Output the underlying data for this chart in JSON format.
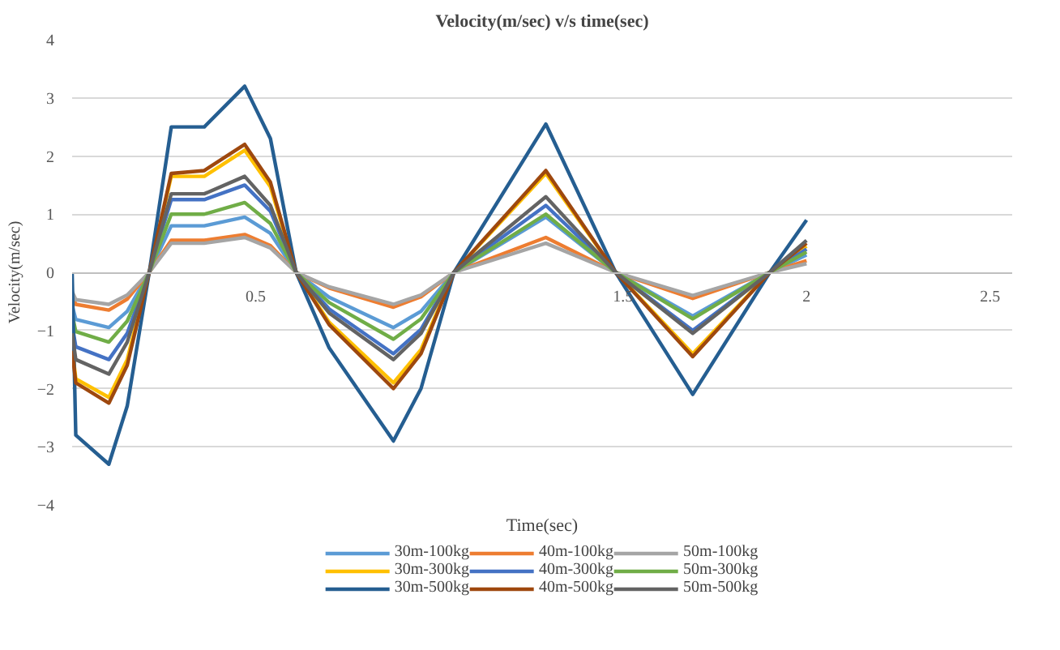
{
  "chart_data": {
    "type": "line",
    "title": "Velocity(m/sec) v/s time(sec)",
    "xlabel": "Time(sec)",
    "ylabel": "Velocity(m/sec)",
    "x": [
      0,
      0.01,
      0.1,
      0.15,
      0.21,
      0.27,
      0.36,
      0.47,
      0.54,
      0.61,
      0.7,
      0.875,
      0.95,
      1.04,
      1.29,
      1.48,
      1.69,
      1.9,
      2.0
    ],
    "xlim": [
      0,
      2.56
    ],
    "xticks": [
      0.5,
      1.5,
      2,
      2.5
    ],
    "ylim": [
      -4,
      4
    ],
    "yticks": [
      -4,
      -3,
      -2,
      -1,
      0,
      1,
      2,
      3,
      4
    ],
    "grid": "y",
    "legend": "bottom",
    "series": [
      {
        "name": "30m-100kg",
        "color": "#5b9bd5",
        "values": [
          -0.57,
          -0.81,
          -0.95,
          -0.67,
          0,
          0.8,
          0.8,
          0.95,
          0.67,
          0,
          -0.43,
          -0.95,
          -0.67,
          0,
          0.95,
          0,
          -0.75,
          0,
          0.3
        ]
      },
      {
        "name": "40m-100kg",
        "color": "#ed7d31",
        "values": [
          -0.39,
          -0.55,
          -0.65,
          -0.46,
          0,
          0.55,
          0.55,
          0.65,
          0.46,
          0,
          -0.27,
          -0.6,
          -0.42,
          0,
          0.6,
          0,
          -0.45,
          0,
          0.2
        ]
      },
      {
        "name": "50m-100kg",
        "color": "#a5a5a5",
        "values": [
          -0.33,
          -0.47,
          -0.55,
          -0.39,
          0,
          0.5,
          0.5,
          0.6,
          0.42,
          0,
          -0.25,
          -0.55,
          -0.39,
          0,
          0.5,
          0,
          -0.4,
          0,
          0.15
        ]
      },
      {
        "name": "30m-300kg",
        "color": "#ffc000",
        "values": [
          -1.29,
          -1.83,
          -2.15,
          -1.5,
          0,
          1.65,
          1.65,
          2.1,
          1.47,
          0,
          -0.86,
          -1.9,
          -1.33,
          0,
          1.7,
          0,
          -1.4,
          0,
          0.45
        ]
      },
      {
        "name": "40m-300kg",
        "color": "#4472c4",
        "values": [
          -0.9,
          -1.28,
          -1.5,
          -1.05,
          0,
          1.25,
          1.25,
          1.5,
          1.05,
          0,
          -0.63,
          -1.4,
          -0.98,
          0,
          1.15,
          0,
          -1.0,
          0,
          0.4
        ]
      },
      {
        "name": "50m-300kg",
        "color": "#70ad47",
        "values": [
          -0.72,
          -1.02,
          -1.2,
          -0.84,
          0,
          1.0,
          1.0,
          1.2,
          0.84,
          0,
          -0.52,
          -1.15,
          -0.8,
          0,
          1.0,
          0,
          -0.8,
          0,
          0.35
        ]
      },
      {
        "name": "30m-500kg",
        "color": "#255e91",
        "values": [
          0,
          -2.8,
          -3.3,
          -2.3,
          0,
          2.5,
          2.5,
          3.2,
          2.3,
          0,
          -1.3,
          -2.9,
          -2.0,
          0,
          2.55,
          0,
          -2.1,
          0,
          0.9
        ]
      },
      {
        "name": "40m-500kg",
        "color": "#9e480e",
        "values": [
          -1.35,
          -1.9,
          -2.25,
          -1.6,
          0,
          1.7,
          1.75,
          2.2,
          1.55,
          0,
          -0.9,
          -2.0,
          -1.4,
          0,
          1.75,
          0,
          -1.45,
          0,
          0.5
        ]
      },
      {
        "name": "50m-500kg",
        "color": "#636363",
        "values": [
          -1.05,
          -1.5,
          -1.75,
          -1.2,
          0,
          1.35,
          1.35,
          1.65,
          1.15,
          0,
          -0.7,
          -1.5,
          -1.05,
          0,
          1.3,
          0,
          -1.05,
          0,
          0.55
        ]
      }
    ]
  }
}
